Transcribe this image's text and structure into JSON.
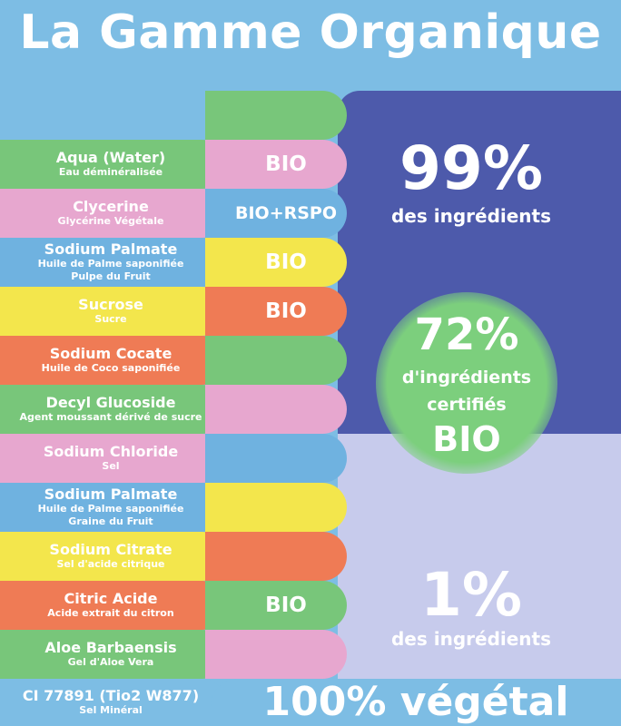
{
  "title": "La Gamme Organique",
  "colors": {
    "green": "#78c67a",
    "pink": "#e7a7cf",
    "blue": "#6fb2e0",
    "yellow": "#f3e64c",
    "orange": "#ef7b55",
    "navy": "#4d5aab",
    "lavender": "#c7cbec",
    "sky": "#7dbde4"
  },
  "ingredients": [
    {
      "name": "Aqua (Water)",
      "sub": "Eau déminéralisée",
      "sub2": "",
      "color": "green"
    },
    {
      "name": "Clycerine",
      "sub": "Glycérine Végétale",
      "sub2": "",
      "color": "pink"
    },
    {
      "name": "Sodium Palmate",
      "sub": "Huile de Palme saponifiée",
      "sub2": "Pulpe du Fruit",
      "color": "blue"
    },
    {
      "name": "Sucrose",
      "sub": "Sucre",
      "sub2": "",
      "color": "yellow"
    },
    {
      "name": "Sodium Cocate",
      "sub": "Huile de Coco saponifiée",
      "sub2": "",
      "color": "orange"
    },
    {
      "name": "Decyl Glucoside",
      "sub": "Agent moussant dérivé de sucre",
      "sub2": "",
      "color": "green"
    },
    {
      "name": "Sodium Chloride",
      "sub": "Sel",
      "sub2": "",
      "color": "pink"
    },
    {
      "name": "Sodium Palmate",
      "sub": "Huile de Palme saponifiée",
      "sub2": "Graine du Fruit",
      "color": "blue"
    },
    {
      "name": "Sodium Citrate",
      "sub": "Sel d'acide citrique",
      "sub2": "",
      "color": "yellow"
    },
    {
      "name": "Citric Acide",
      "sub": "Acide extrait du citron",
      "sub2": "",
      "color": "orange"
    },
    {
      "name": "Aloe Barbaensis",
      "sub": "Gel d'Aloe Vera",
      "sub2": "",
      "color": "green"
    },
    {
      "name": "CI 77891 (Tio2 W877)",
      "sub": "Sel Minéral",
      "sub2": "",
      "color": "sky"
    }
  ],
  "pills": [
    {
      "label": "",
      "color": "green"
    },
    {
      "label": "BIO",
      "color": "pink"
    },
    {
      "label": "BIO+RSPO",
      "color": "blue"
    },
    {
      "label": "BIO",
      "color": "yellow"
    },
    {
      "label": "BIO",
      "color": "orange"
    },
    {
      "label": "",
      "color": "green"
    },
    {
      "label": "",
      "color": "pink"
    },
    {
      "label": "",
      "color": "blue"
    },
    {
      "label": "",
      "color": "yellow"
    },
    {
      "label": "",
      "color": "orange"
    },
    {
      "label": "BIO",
      "color": "green"
    },
    {
      "label": "",
      "color": "pink"
    }
  ],
  "stat_99": {
    "value": "99%",
    "caption": "des ingrédients"
  },
  "stat_72": {
    "value": "72%",
    "line1": "d'ingrédients",
    "line2": "certifiés",
    "line3": "BIO"
  },
  "stat_1": {
    "value": "1%",
    "caption": "des ingrédients"
  },
  "footer": "100% végétal"
}
